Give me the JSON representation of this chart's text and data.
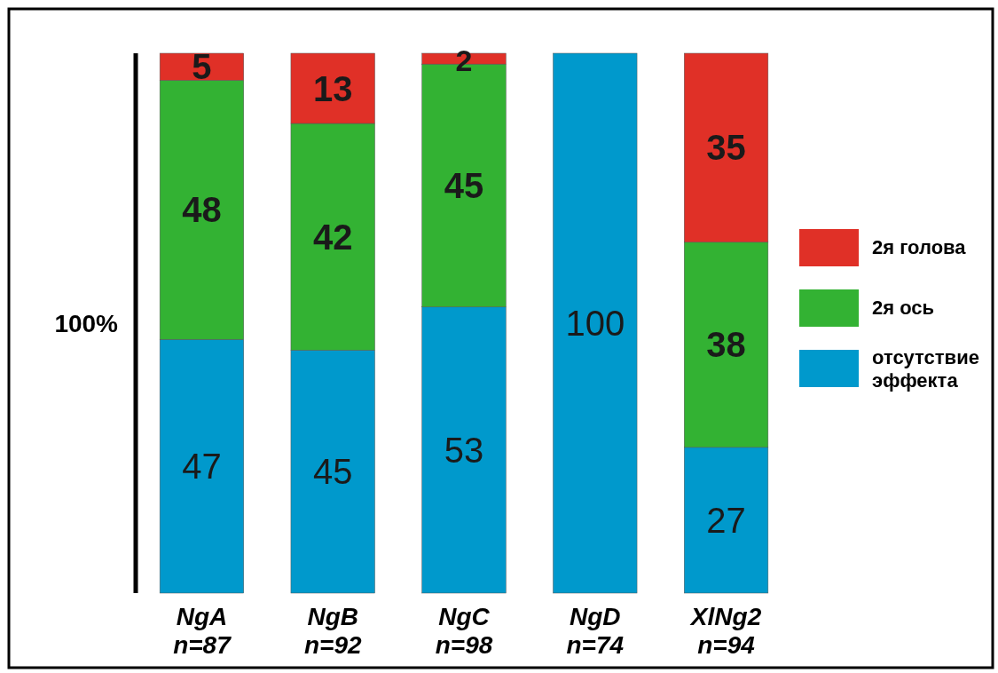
{
  "chart_data": {
    "type": "bar",
    "stacked": true,
    "ylabel": "100%",
    "ylim": [
      0,
      100
    ],
    "data_labels": true,
    "legend": "right",
    "categories": [
      "NgA\nn=87",
      "NgB\nn=92",
      "NgC\nn=98",
      "NgD\nn=74",
      "XlNg2\nn=94"
    ],
    "series": [
      {
        "name": "отсутствие\nэффекта",
        "color": "#0099cc",
        "values": [
          47,
          45,
          53,
          100,
          27
        ]
      },
      {
        "name": "2я ось",
        "color": "#33b233",
        "values": [
          48,
          42,
          45,
          null,
          38
        ]
      },
      {
        "name": "2я голова",
        "color": "#e03027",
        "values": [
          5,
          13,
          2,
          null,
          35
        ]
      }
    ]
  }
}
